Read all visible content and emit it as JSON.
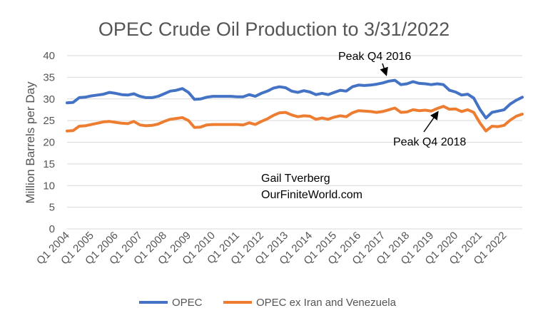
{
  "chart_data": {
    "type": "line",
    "title": "OPEC Crude Oil Production to 3/31/2022",
    "xlabel": "",
    "ylabel": "Million Barrels per Day",
    "ylim": [
      0,
      40
    ],
    "yticks": [
      "0",
      "5",
      "10",
      "15",
      "20",
      "25",
      "30",
      "35",
      "40"
    ],
    "x_tick_labels": [
      "Q1 2004",
      "Q1 2005",
      "Q1 2006",
      "Q1 2007",
      "Q1 2008",
      "Q1 2009",
      "Q1 2010",
      "Q1 2011",
      "Q1 2012",
      "Q1 2013",
      "Q1 2014",
      "Q1 2015",
      "Q1 2016",
      "Q1 2017",
      "Q1 2018",
      "Q1 2019",
      "Q1 2020",
      "Q1 2021",
      "Q1 2022"
    ],
    "grid": true,
    "legend_position": "bottom",
    "series": [
      {
        "name": "OPEC",
        "color": "#4472C4",
        "values": [
          29.1,
          29.2,
          30.3,
          30.4,
          30.7,
          30.9,
          31.1,
          31.5,
          31.3,
          31.0,
          30.9,
          31.2,
          30.6,
          30.3,
          30.3,
          30.6,
          31.2,
          31.8,
          32.0,
          32.4,
          31.5,
          29.9,
          30.0,
          30.4,
          30.6,
          30.6,
          30.6,
          30.6,
          30.5,
          30.5,
          31.0,
          30.6,
          31.3,
          31.8,
          32.5,
          32.8,
          32.6,
          31.8,
          31.5,
          31.9,
          31.6,
          31.0,
          31.3,
          31.0,
          31.5,
          32.0,
          31.8,
          32.8,
          33.2,
          33.1,
          33.2,
          33.4,
          33.7,
          34.1,
          34.3,
          33.3,
          33.5,
          34.0,
          33.6,
          33.5,
          33.3,
          33.5,
          33.3,
          32.0,
          31.6,
          30.9,
          31.1,
          30.2,
          27.6,
          25.6,
          26.9,
          27.2,
          27.5,
          28.8,
          29.7,
          30.4
        ]
      },
      {
        "name": "OPEC ex Iran and Venezuela",
        "color": "#ED7D31",
        "values": [
          22.6,
          22.7,
          23.7,
          23.8,
          24.1,
          24.4,
          24.7,
          24.8,
          24.6,
          24.4,
          24.3,
          24.8,
          24.0,
          23.8,
          23.9,
          24.2,
          24.8,
          25.3,
          25.5,
          25.7,
          25.0,
          23.4,
          23.5,
          24.0,
          24.1,
          24.1,
          24.1,
          24.1,
          24.1,
          24.0,
          24.5,
          24.1,
          24.8,
          25.4,
          26.2,
          26.8,
          26.9,
          26.3,
          25.9,
          26.1,
          26.0,
          25.3,
          25.6,
          25.3,
          25.8,
          26.1,
          25.9,
          26.8,
          27.3,
          27.2,
          27.1,
          26.9,
          27.1,
          27.5,
          27.9,
          26.9,
          27.0,
          27.5,
          27.3,
          27.4,
          27.2,
          27.8,
          28.3,
          27.6,
          27.7,
          27.1,
          27.5,
          26.9,
          24.5,
          22.6,
          23.7,
          23.6,
          23.9,
          25.1,
          26.0,
          26.5
        ]
      }
    ],
    "annotations": {
      "peak_q4_2016": "Peak Q4 2016",
      "peak_q4_2018": "Peak Q4 2018",
      "author": "Gail Tverberg",
      "site": "OurFiniteWorld.com"
    }
  }
}
